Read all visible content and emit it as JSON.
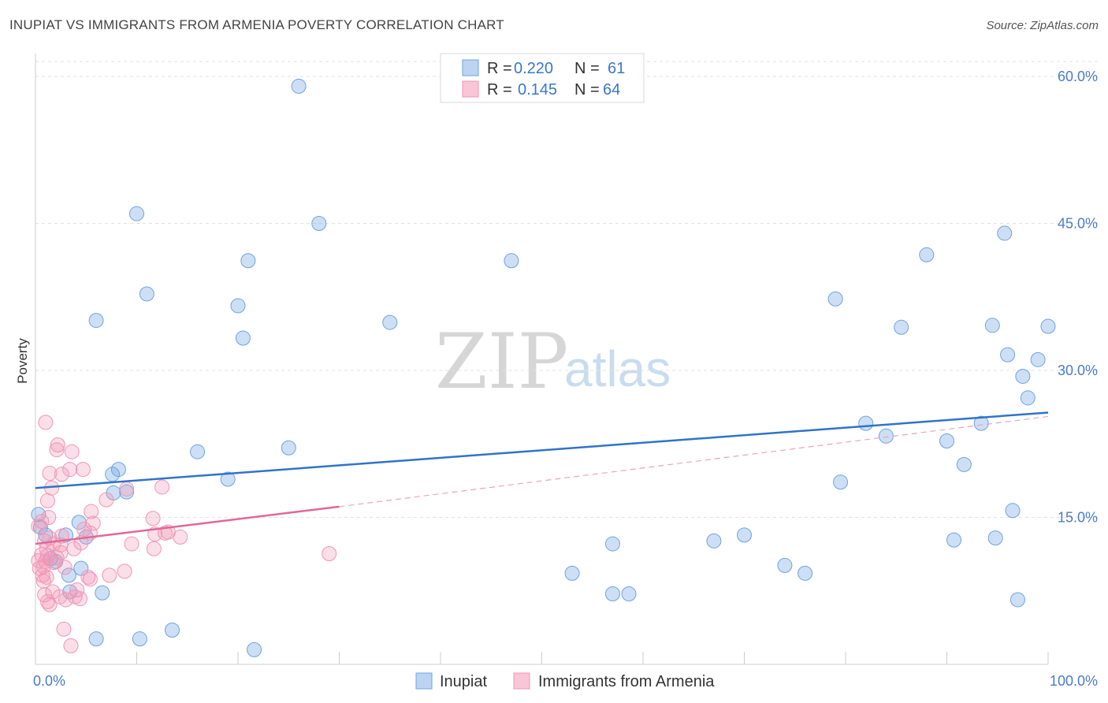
{
  "title": "INUPIAT VS IMMIGRANTS FROM ARMENIA POVERTY CORRELATION CHART",
  "source": "Source: ZipAtlas.com",
  "watermark": {
    "part1": "ZIP",
    "part2": "atlas"
  },
  "chart_data": {
    "type": "scatter",
    "ylabel": "Poverty",
    "xlim": [
      0,
      100
    ],
    "ylim": [
      0,
      60
    ],
    "x_tick_labels": [
      "0.0%",
      "100.0%"
    ],
    "y_ticks": [
      15,
      30,
      45,
      60
    ],
    "y_tick_labels": [
      "15.0%",
      "30.0%",
      "45.0%",
      "60.0%"
    ],
    "grid": true,
    "colors": {
      "inupiat": "#6fa3e0",
      "armenia": "#f195b4",
      "inupiat_line": "#2f74c9",
      "armenia_line": "#e0689a"
    },
    "legend_stats": [
      {
        "r_label": "R =",
        "r": "0.220",
        "n_label": "N =",
        "n": "61"
      },
      {
        "r_label": "R =",
        "r": "0.145",
        "n_label": "N =",
        "n": "64"
      }
    ],
    "series": [
      {
        "name": "Inupiat",
        "trend": {
          "x0": 0,
          "y0": 18.0,
          "x1": 100,
          "y1": 25.7,
          "dashed_extension": false
        },
        "points": [
          [
            26,
            59.0
          ],
          [
            10,
            46.0
          ],
          [
            28,
            45.0
          ],
          [
            21,
            41.2
          ],
          [
            47,
            41.2
          ],
          [
            11,
            37.8
          ],
          [
            20,
            36.6
          ],
          [
            6,
            35.1
          ],
          [
            35,
            34.9
          ],
          [
            20.5,
            33.3
          ],
          [
            0.3,
            15.3
          ],
          [
            0.5,
            14.0
          ],
          [
            1,
            13.2
          ],
          [
            1.5,
            10.8
          ],
          [
            2,
            10.5
          ],
          [
            3,
            13.2
          ],
          [
            4.3,
            14.5
          ],
          [
            5,
            13.0
          ],
          [
            4.5,
            9.8
          ],
          [
            3.4,
            7.4
          ],
          [
            6.6,
            7.3
          ],
          [
            3.3,
            9.1
          ],
          [
            7.6,
            19.4
          ],
          [
            8.2,
            19.9
          ],
          [
            7.7,
            17.5
          ],
          [
            9,
            17.6
          ],
          [
            16,
            21.7
          ],
          [
            19,
            18.9
          ],
          [
            25,
            22.1
          ],
          [
            13.5,
            3.5
          ],
          [
            6,
            2.6
          ],
          [
            10.3,
            2.6
          ],
          [
            21.6,
            1.5
          ],
          [
            57,
            12.3
          ],
          [
            67,
            12.6
          ],
          [
            70,
            13.2
          ],
          [
            53,
            9.3
          ],
          [
            57,
            7.2
          ],
          [
            58.6,
            7.2
          ],
          [
            74,
            10.1
          ],
          [
            76,
            9.3
          ],
          [
            79,
            37.3
          ],
          [
            79.5,
            18.6
          ],
          [
            82,
            24.6
          ],
          [
            84,
            23.3
          ],
          [
            85.5,
            34.4
          ],
          [
            88,
            41.8
          ],
          [
            90,
            22.8
          ],
          [
            90.7,
            12.7
          ],
          [
            91.7,
            20.4
          ],
          [
            93.4,
            24.6
          ],
          [
            94.5,
            34.6
          ],
          [
            94.8,
            12.9
          ],
          [
            95.7,
            44.0
          ],
          [
            96,
            31.6
          ],
          [
            96.5,
            15.7
          ],
          [
            97,
            6.6
          ],
          [
            97.5,
            29.4
          ],
          [
            98,
            27.2
          ],
          [
            99,
            31.1
          ],
          [
            100,
            34.5
          ]
        ]
      },
      {
        "name": "Immigrants from Armenia",
        "trend": {
          "x0": 0,
          "y0": 12.3,
          "x1": 30,
          "y1": 16.1,
          "dash_x1": 100,
          "dash_y1": 25.3,
          "dashed_extension": true
        },
        "points": [
          [
            1,
            24.7
          ],
          [
            2.2,
            22.4
          ],
          [
            2.1,
            21.9
          ],
          [
            3.6,
            21.7
          ],
          [
            4.7,
            19.9
          ],
          [
            3.4,
            19.9
          ],
          [
            1.4,
            19.5
          ],
          [
            2.6,
            19.4
          ],
          [
            1.6,
            18.0
          ],
          [
            12.5,
            18.1
          ],
          [
            9,
            17.9
          ],
          [
            7,
            16.8
          ],
          [
            1.2,
            16.7
          ],
          [
            5.5,
            15.6
          ],
          [
            1.3,
            15.0
          ],
          [
            0.6,
            14.6
          ],
          [
            11.6,
            14.9
          ],
          [
            5.7,
            14.4
          ],
          [
            0.3,
            14.1
          ],
          [
            4.8,
            13.8
          ],
          [
            5.4,
            13.4
          ],
          [
            12.8,
            13.4
          ],
          [
            13.1,
            13.5
          ],
          [
            11.8,
            13.3
          ],
          [
            2.6,
            13.1
          ],
          [
            1.4,
            12.9
          ],
          [
            14.3,
            13.0
          ],
          [
            0.9,
            12.6
          ],
          [
            1.8,
            12.3
          ],
          [
            4.5,
            12.4
          ],
          [
            2.5,
            12.2
          ],
          [
            9.5,
            12.3
          ],
          [
            1.1,
            11.8
          ],
          [
            3.8,
            11.8
          ],
          [
            2.5,
            11.4
          ],
          [
            11.7,
            11.8
          ],
          [
            29,
            11.3
          ],
          [
            1.2,
            11.1
          ],
          [
            0.6,
            11.2
          ],
          [
            2.1,
            10.9
          ],
          [
            0.3,
            10.6
          ],
          [
            1.0,
            10.5
          ],
          [
            1.8,
            10.4
          ],
          [
            0.8,
            10.0
          ],
          [
            0.4,
            9.8
          ],
          [
            2.9,
            9.9
          ],
          [
            8.8,
            9.5
          ],
          [
            0.7,
            9.1
          ],
          [
            1.1,
            8.9
          ],
          [
            5.4,
            8.7
          ],
          [
            0.8,
            8.5
          ],
          [
            1.7,
            7.4
          ],
          [
            3.9,
            6.9
          ],
          [
            0.9,
            7.1
          ],
          [
            3.0,
            6.6
          ],
          [
            2.4,
            6.9
          ],
          [
            4.4,
            6.7
          ],
          [
            1.2,
            6.4
          ],
          [
            1.4,
            6.1
          ],
          [
            2.8,
            3.6
          ],
          [
            3.5,
            1.9
          ],
          [
            4.1,
            7.6
          ],
          [
            5.2,
            8.9
          ],
          [
            7.3,
            9.1
          ]
        ]
      }
    ]
  },
  "legend_bottom": [
    {
      "label": "Inupiat"
    },
    {
      "label": "Immigrants from Armenia"
    }
  ]
}
